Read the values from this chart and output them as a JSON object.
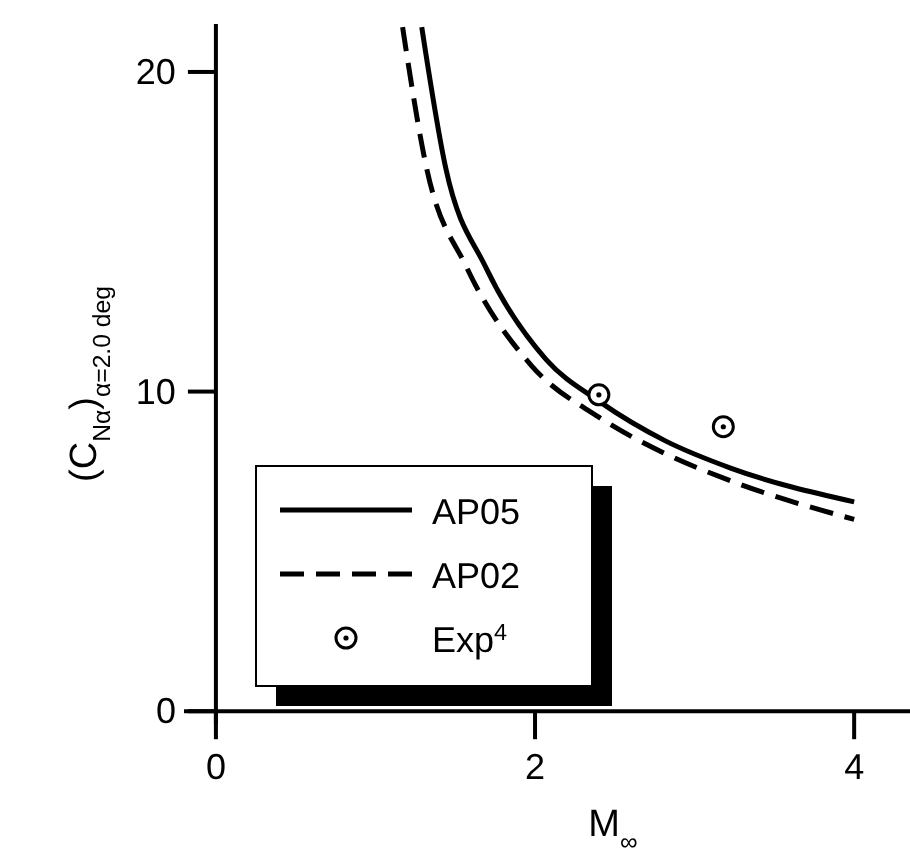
{
  "chart_data": {
    "type": "line",
    "xlabel": "M$_{∞}$",
    "ylabel": "(C$_{Nα}$)$_{α=2.0 deg}$",
    "xlim": [
      -0.2,
      4.35
    ],
    "ylim": [
      -0.4,
      21.5
    ],
    "xticks": [
      0,
      2,
      4
    ],
    "yticks": [
      0,
      10,
      20
    ],
    "grid": false,
    "legend": "bottom left",
    "series": [
      {
        "name": "AP05",
        "color": "#000000",
        "line_style": "solid",
        "x": [
          1.29,
          1.44,
          1.69,
          2.07,
          2.4,
          2.82,
          3.23,
          4.0
        ],
        "values": [
          21.4,
          17.0,
          13.9,
          11.0,
          9.7,
          8.45,
          7.6,
          6.55
        ]
      },
      {
        "name": "AP02",
        "color": "#000000",
        "line_style": "dashed",
        "x": [
          1.17,
          1.32,
          1.57,
          1.98,
          2.4,
          2.82,
          3.23,
          4.0
        ],
        "values": [
          21.4,
          17.0,
          13.9,
          10.8,
          9.2,
          8.05,
          7.2,
          6.0
        ]
      },
      {
        "name": "Exp$^{4}$",
        "type": "scatter",
        "color": "#000000",
        "marker": "circle",
        "x": [
          2.4,
          3.18
        ],
        "values": [
          9.9,
          8.9
        ]
      }
    ]
  }
}
